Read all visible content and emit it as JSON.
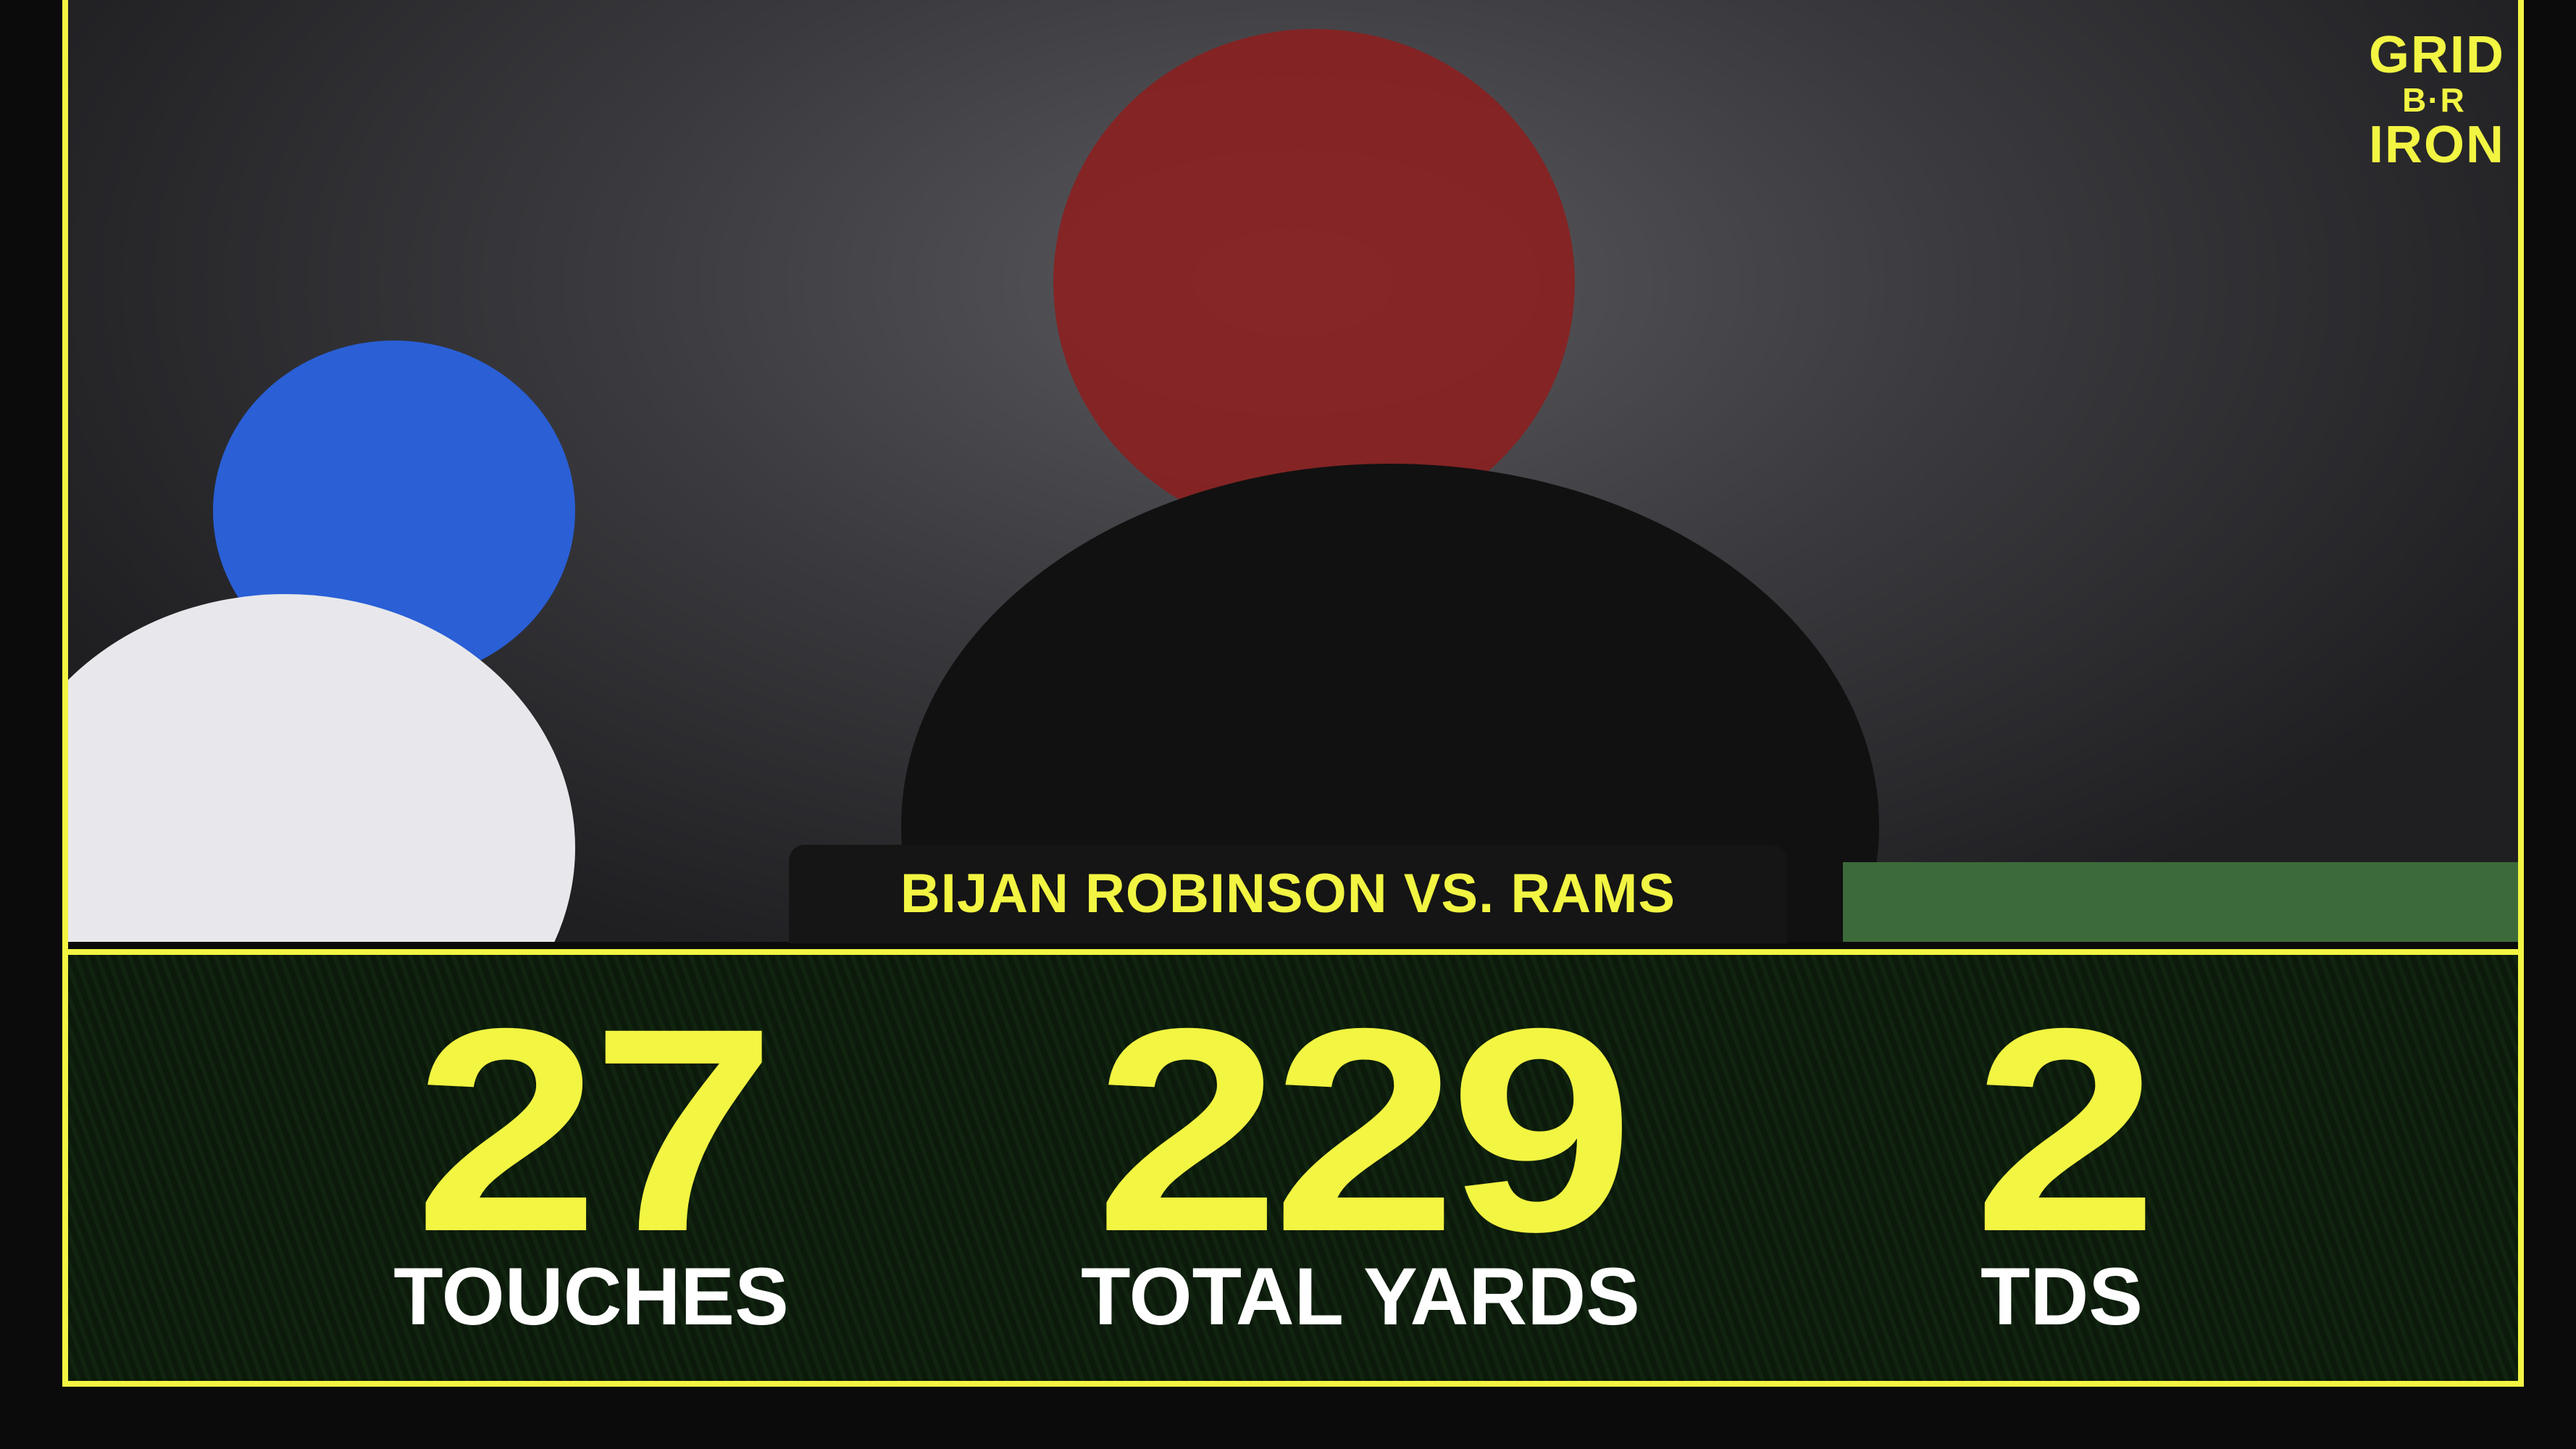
{
  "logo": {
    "lines": [
      "GRID",
      "B·R",
      "IRON"
    ]
  },
  "caption": "BIJAN ROBINSON VS. RAMS",
  "stats": [
    {
      "value": 27,
      "label": "TOUCHES"
    },
    {
      "value": 229,
      "label": "TOTAL YARDS"
    },
    {
      "value": 2,
      "label": "TDS"
    }
  ]
}
